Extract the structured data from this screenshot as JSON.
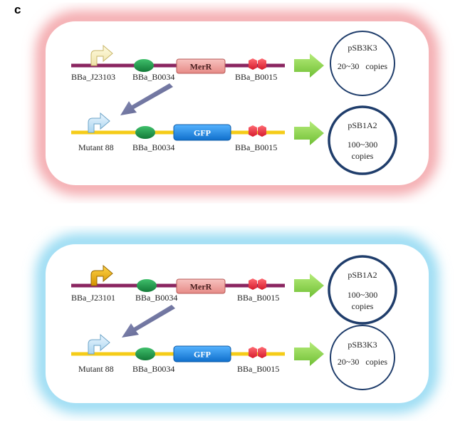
{
  "panel_label": "c",
  "colors": {
    "top_glow": "#f3a1a6",
    "bottom_glow": "#8fd8f2",
    "backbone_low": "#8a2560",
    "backbone_high": "#f5cc18",
    "rbs": "#1ea54e",
    "terminator": "#e8283a",
    "merr_box": "#f2a7a3",
    "gfp_box": "#1f8fe6",
    "arrow_green": "#8ad24a",
    "diag_arrow": "#6b6f99",
    "circle_stroke": "#1f3d6b"
  },
  "top_system": {
    "sensor": {
      "promoter": "BBa_J23103",
      "promoter_icon": "promoter-arrow-pale-icon",
      "rbs": "BBa_B0034",
      "gene": "MerR",
      "terminator": "BBa_B0015",
      "plasmid": "pSB3K3",
      "copy_number": "20~30   copies"
    },
    "reporter": {
      "promoter": "Mutant 88",
      "rbs": "BBa_B0034",
      "gene": "GFP",
      "terminator": "BBa_B0015",
      "plasmid": "pSB1A2",
      "copy_number_line1": "100~300",
      "copy_number_line2": "copies"
    }
  },
  "bottom_system": {
    "sensor": {
      "promoter": "BBa_J23101",
      "promoter_icon": "promoter-arrow-gold-icon",
      "rbs": "BBa_B0034",
      "gene": "MerR",
      "terminator": "BBa_B0015",
      "plasmid": "pSB1A2",
      "copy_number_line1": "100~300",
      "copy_number_line2": "copies"
    },
    "reporter": {
      "promoter": "Mutant 88",
      "rbs": "BBa_B0034",
      "gene": "GFP",
      "terminator": "BBa_B0015",
      "plasmid": "pSB3K3",
      "copy_number": "20~30   copies"
    }
  }
}
